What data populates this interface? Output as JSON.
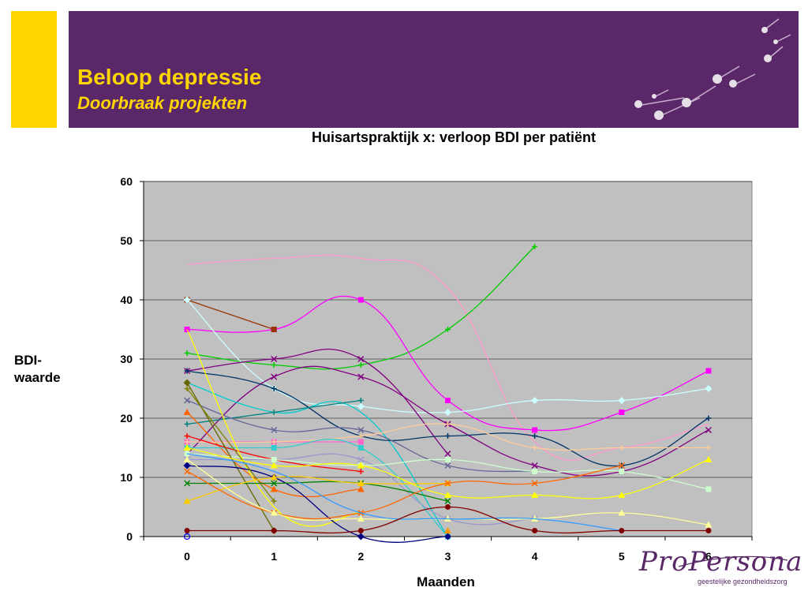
{
  "slide": {
    "title": "Beloop depressie",
    "subtitle": "Doorbraak projekten"
  },
  "logo": {
    "name": "ProPersona",
    "tagline": "geestelijke gezondheidszorg"
  },
  "colors": {
    "header_purple": "#5a2868",
    "accent_yellow": "#ffd500",
    "plot_bg": "#c0c0c0"
  },
  "chart_data": {
    "type": "line",
    "title": "Huisartspraktijk x: verloop BDI per patiënt",
    "xlabel": "Maanden",
    "ylabel": "BDI-\nwaarde",
    "x": [
      0,
      1,
      2,
      3,
      4,
      5,
      6
    ],
    "xlim": [
      -0.5,
      6.5
    ],
    "ylim": [
      0,
      60
    ],
    "yticks": [
      0,
      10,
      20,
      30,
      40,
      50,
      60
    ],
    "grid": true,
    "smooth": true,
    "series": [
      {
        "color": "#ff99cc",
        "marker": "none",
        "values": [
          46,
          47,
          47,
          42,
          16,
          15,
          19
        ]
      },
      {
        "color": "#00cc00",
        "marker": "plus",
        "values": [
          31,
          29,
          29,
          35,
          49,
          null,
          null
        ]
      },
      {
        "color": "#ff00ff",
        "marker": "square",
        "values": [
          35,
          35,
          40,
          23,
          18,
          21,
          28
        ]
      },
      {
        "color": "#993300",
        "marker": "square",
        "values": [
          40,
          35,
          null,
          null,
          null,
          null,
          null
        ]
      },
      {
        "color": "#ccffff",
        "marker": "diamond",
        "values": [
          40,
          25,
          22,
          21,
          23,
          23,
          25
        ]
      },
      {
        "color": "#800080",
        "marker": "x",
        "values": [
          28,
          30,
          30,
          14,
          null,
          null,
          null
        ]
      },
      {
        "color": "#800080",
        "marker": "x",
        "values": [
          14,
          27,
          27,
          19,
          12,
          11,
          18
        ]
      },
      {
        "color": "#00cccc",
        "marker": "none",
        "values": [
          26,
          21,
          21,
          0,
          null,
          null,
          null
        ]
      },
      {
        "color": "#003366",
        "marker": "plus",
        "values": [
          28,
          25,
          17,
          17,
          17,
          12,
          20
        ]
      },
      {
        "color": "#008080",
        "marker": "plus",
        "values": [
          19,
          21,
          23,
          null,
          null,
          null,
          null
        ]
      },
      {
        "color": "#666699",
        "marker": "x",
        "values": [
          23,
          18,
          18,
          12,
          11,
          null,
          null
        ]
      },
      {
        "color": "#ff6600",
        "marker": "triangle",
        "values": [
          21,
          8,
          8,
          null,
          null,
          null,
          null
        ]
      },
      {
        "color": "#ff66cc",
        "marker": "square",
        "values": [
          16,
          16,
          16,
          null,
          null,
          null,
          null
        ]
      },
      {
        "color": "#ffcc99",
        "marker": "plus",
        "values": [
          16,
          16,
          17,
          19,
          15,
          15,
          15
        ]
      },
      {
        "color": "#33cccc",
        "marker": "square",
        "values": [
          15,
          15,
          15,
          0,
          null,
          null,
          null
        ]
      },
      {
        "color": "#9999cc",
        "marker": "x",
        "values": [
          13,
          13,
          13,
          3,
          3,
          null,
          null
        ]
      },
      {
        "color": "#ff0000",
        "marker": "plus",
        "values": [
          17,
          13,
          11,
          null,
          null,
          null,
          null
        ]
      },
      {
        "color": "#ccffcc",
        "marker": "square",
        "values": [
          14,
          13,
          12,
          13,
          11,
          11,
          8
        ]
      },
      {
        "color": "#ffff00",
        "marker": "none",
        "values": [
          35,
          5,
          4,
          null,
          null,
          null,
          null
        ]
      },
      {
        "color": "#666600",
        "marker": "diamond",
        "values": [
          26,
          1,
          null,
          null,
          null,
          null,
          null
        ]
      },
      {
        "color": "#000080",
        "marker": "diamond",
        "values": [
          12,
          10,
          0,
          0,
          null,
          null,
          null
        ]
      },
      {
        "color": "#808000",
        "marker": "plus",
        "values": [
          25,
          6,
          null,
          null,
          null,
          null,
          null
        ]
      },
      {
        "color": "#008000",
        "marker": "x",
        "values": [
          9,
          9,
          9,
          6,
          null,
          null,
          null
        ]
      },
      {
        "color": "#ffcc00",
        "marker": "triangle",
        "values": [
          6,
          10,
          9,
          9,
          null,
          null,
          null
        ]
      },
      {
        "color": "#ffff00",
        "marker": "triangle",
        "values": [
          15,
          12,
          12,
          7,
          7,
          7,
          13
        ]
      },
      {
        "color": "#ff6600",
        "marker": "x",
        "values": [
          11,
          4,
          4,
          9,
          9,
          12,
          null
        ]
      },
      {
        "color": "#ffff99",
        "marker": "triangle",
        "values": [
          13,
          4,
          3,
          3,
          3,
          4,
          2
        ]
      },
      {
        "color": "#3399ff",
        "marker": "none",
        "values": [
          14,
          11,
          4,
          3,
          3,
          1,
          null
        ]
      },
      {
        "color": "#800000",
        "marker": "circle",
        "values": [
          1,
          1,
          1,
          5,
          1,
          1,
          1
        ]
      },
      {
        "color": "#ff9900",
        "marker": "triangle",
        "values": [
          null,
          null,
          null,
          1,
          null,
          null,
          null
        ]
      },
      {
        "color": "#0000ff",
        "marker": "circle-open",
        "values": [
          0,
          null,
          null,
          null,
          null,
          null,
          null
        ]
      }
    ]
  }
}
